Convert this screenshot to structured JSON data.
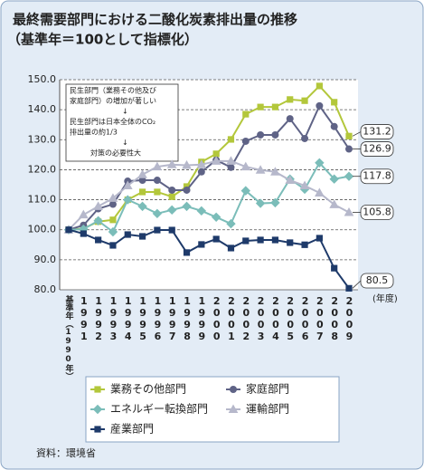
{
  "chart_data": {
    "type": "line",
    "title": "最終需要部門における二酸化炭素排出量の推移",
    "subtitle": "（基準年＝100として指標化）",
    "x_label": "(年度)",
    "source": "資料：環境省",
    "annotation": {
      "lines": [
        "民生部門（業務その他及び",
        "家庭部門）の増加が著しい",
        "↓",
        "民生部門は日本全体のCO₂",
        "排出量の約1/3",
        "↓",
        "対策の必要性大"
      ]
    },
    "categories": [
      "基準年（1990年）",
      "1991",
      "1992",
      "1993",
      "1994",
      "1995",
      "1996",
      "1997",
      "1998",
      "1999",
      "2000",
      "2001",
      "2002",
      "2003",
      "2004",
      "2005",
      "2006",
      "2007",
      "2008",
      "2009"
    ],
    "ylim": [
      80,
      150
    ],
    "yticks": [
      {
        "value": 80,
        "label": "80.0"
      },
      {
        "value": 90,
        "label": "90.0"
      },
      {
        "value": 100,
        "label": "100.0"
      },
      {
        "value": 110,
        "label": "110.0"
      },
      {
        "value": 120,
        "label": "120.0"
      },
      {
        "value": 130,
        "label": "130.0"
      },
      {
        "value": 140,
        "label": "140.0"
      },
      {
        "value": 150,
        "label": "150.0"
      }
    ],
    "grid": true,
    "series": [
      {
        "name": "業務その他部門",
        "color": "#b3c73b",
        "marker": "square",
        "values": [
          100,
          100.4,
          102.7,
          103.3,
          110,
          112.6,
          112.6,
          111,
          114.4,
          122.6,
          125.3,
          130.1,
          138.5,
          140.9,
          140.9,
          143.4,
          143,
          147.9,
          142.5,
          131.2
        ]
      },
      {
        "name": "家庭部門",
        "color": "#5f6386",
        "marker": "circle",
        "values": [
          100,
          101.5,
          107,
          108.5,
          116.2,
          116.5,
          116.5,
          113.2,
          113.2,
          119.3,
          123.2,
          120.8,
          129.5,
          131.6,
          131.6,
          137,
          130.4,
          141.3,
          134.4,
          126.9
        ]
      },
      {
        "name": "エネルギー転換部門",
        "color": "#7bbdb9",
        "marker": "diamond",
        "values": [
          100,
          100.2,
          103,
          99.3,
          110,
          107.8,
          105.4,
          106.6,
          107.8,
          106.3,
          104.2,
          102,
          113,
          108.8,
          109,
          116.9,
          113.5,
          122.3,
          116.9,
          117.8
        ]
      },
      {
        "name": "運輸部門",
        "color": "#b6b8cb",
        "marker": "triangle",
        "values": [
          100,
          105,
          107.8,
          110.5,
          114.7,
          118.4,
          121,
          121.7,
          121.5,
          121.7,
          122.9,
          122.9,
          121,
          119.9,
          119.3,
          116.5,
          114.7,
          112.3,
          108.4,
          105.8
        ]
      },
      {
        "name": "産業部門",
        "color": "#1e3a6a",
        "marker": "square",
        "values": [
          100,
          98.7,
          96.6,
          94.8,
          98.4,
          97.8,
          99.9,
          99.9,
          92.4,
          95.1,
          96.9,
          93.9,
          96.3,
          96.6,
          96.6,
          95.7,
          95,
          97.2,
          87.2,
          80.5
        ]
      }
    ]
  }
}
